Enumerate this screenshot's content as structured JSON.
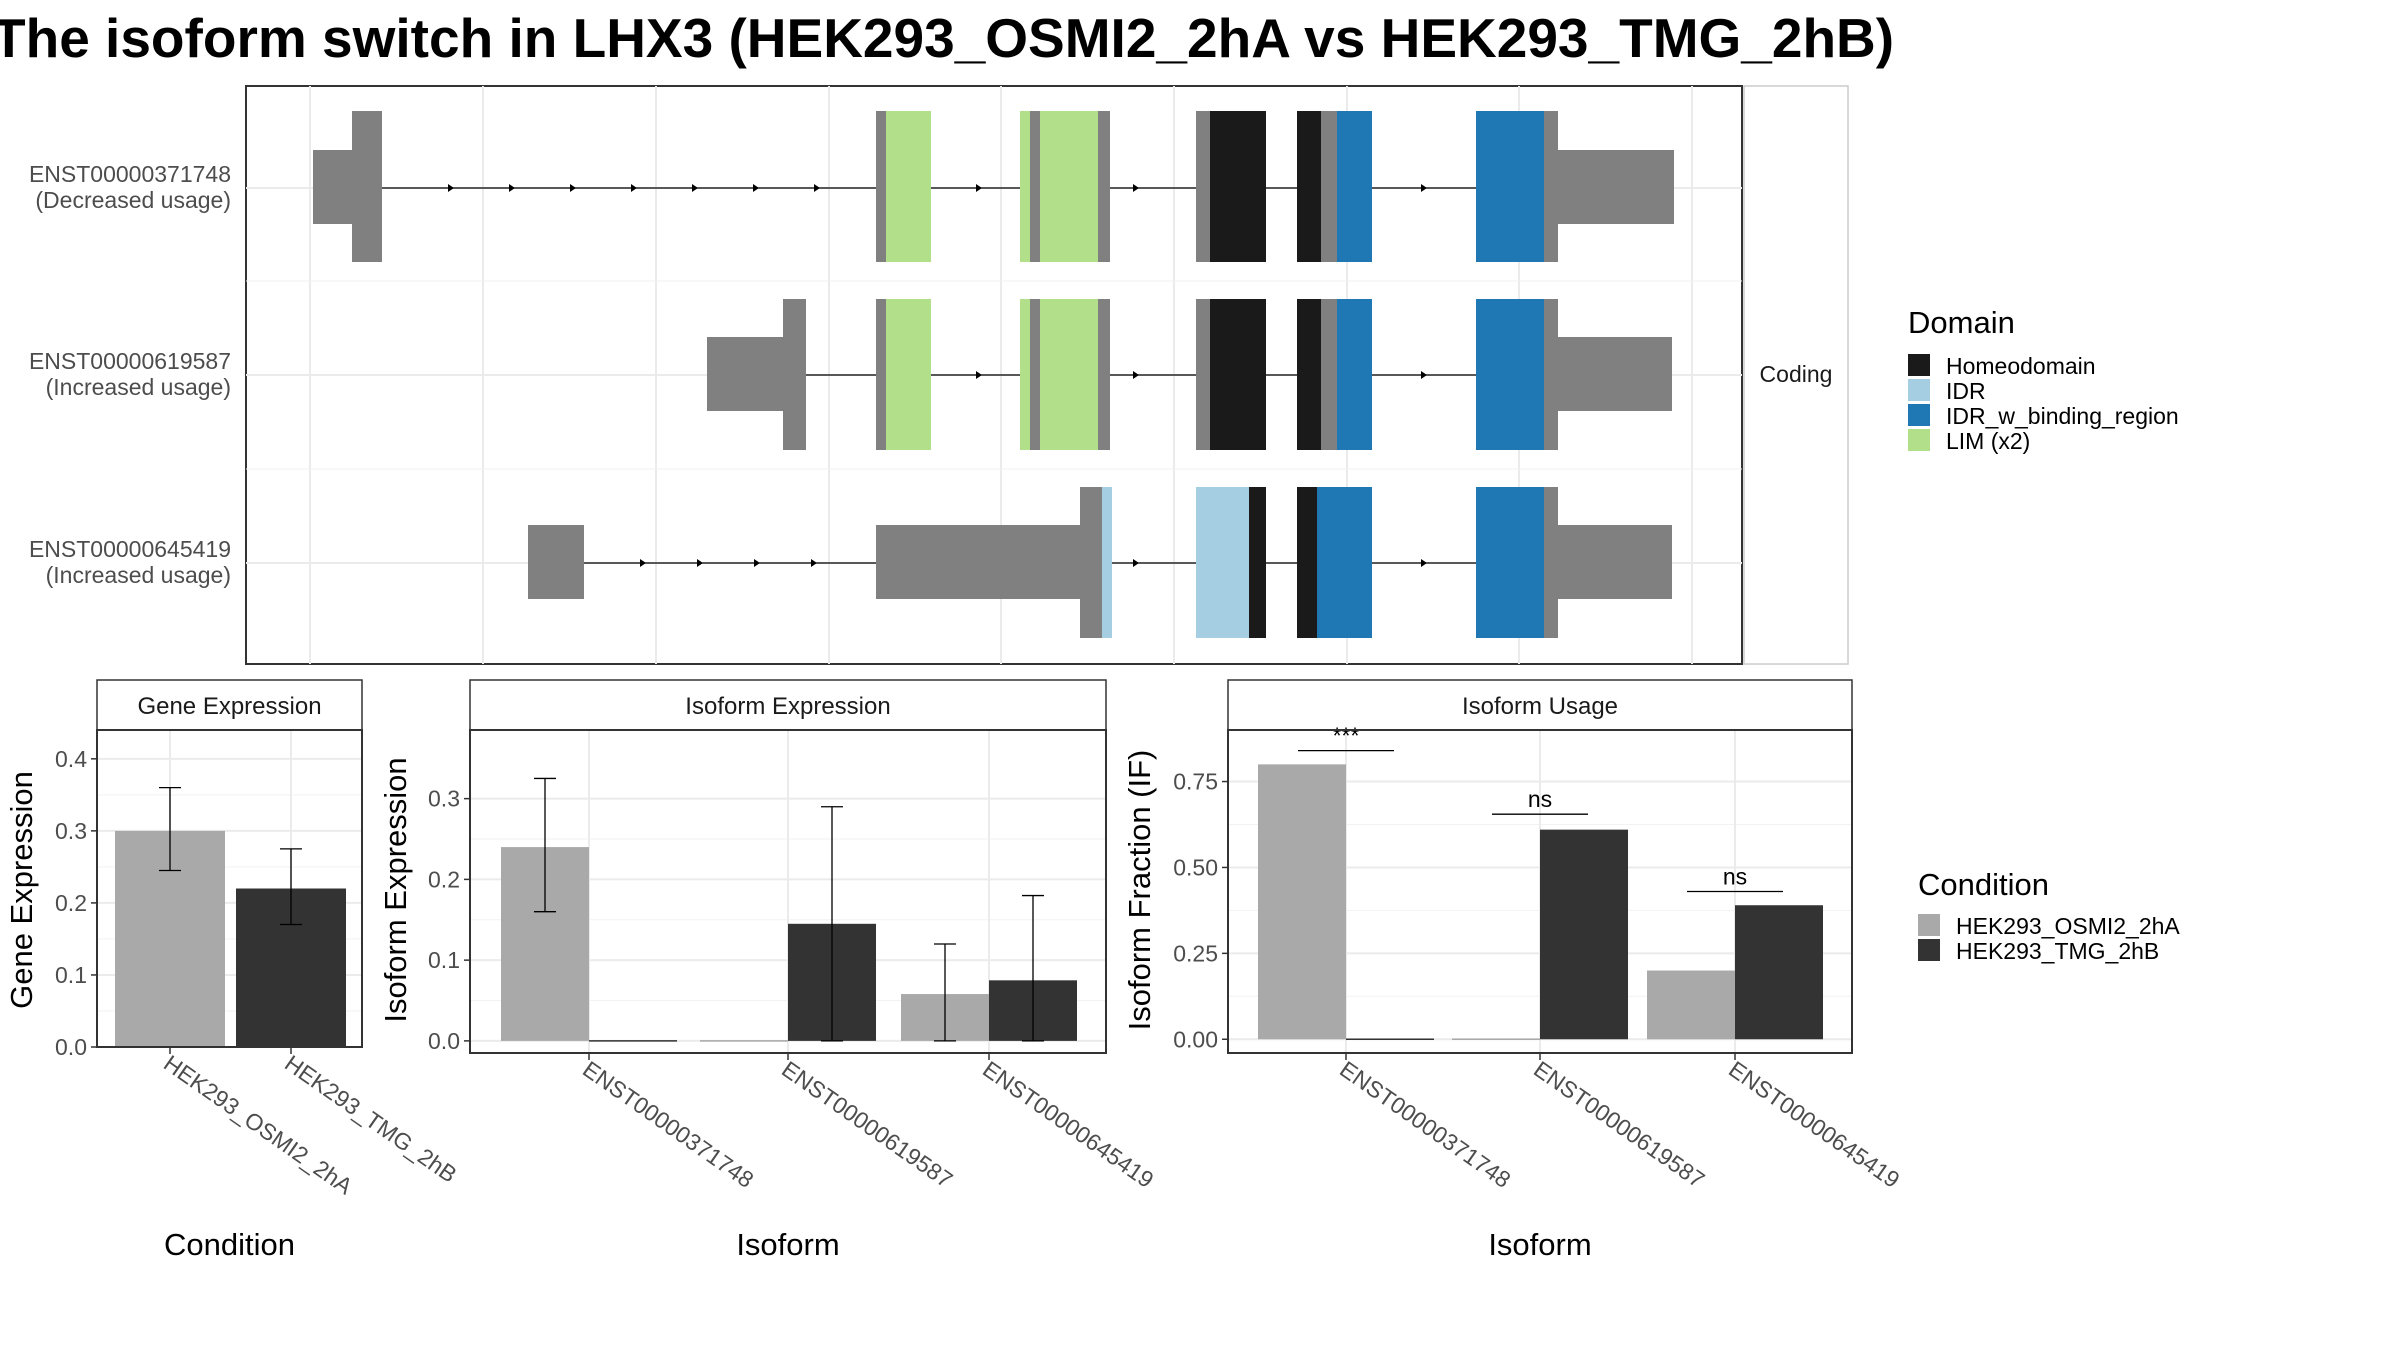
{
  "title": "The isoform switch in LHX3 (HEK293_OSMI2_2hA vs HEK293_TMG_2hB)",
  "chart_data": [
    {
      "type": "transcript_structure",
      "facet_label": "Coding",
      "legend_title": "Domain",
      "domains": [
        {
          "name": "Homeodomain",
          "color": "#1a1a1a"
        },
        {
          "name": "IDR",
          "color": "#a6cee3"
        },
        {
          "name": "IDR_w_binding_region",
          "color": "#1f78b4"
        },
        {
          "name": "LIM (x2)",
          "color": "#b2df8a"
        }
      ],
      "transcripts": [
        {
          "id": "ENST00000371748",
          "label_line2": "(Decreased usage)"
        },
        {
          "id": "ENST00000619587",
          "label_line2": "(Increased usage)"
        },
        {
          "id": "ENST00000645419",
          "label_line2": "(Increased usage)"
        }
      ]
    },
    {
      "type": "bar",
      "title": "Gene Expression",
      "xlabel": "Condition",
      "ylabel": "Gene Expression",
      "ylim": [
        0,
        0.44
      ],
      "yticks": [
        0.0,
        0.1,
        0.2,
        0.3,
        0.4
      ],
      "ytick_labels": [
        "0.0",
        "0.1",
        "0.2",
        "0.3",
        "0.4"
      ],
      "categories": [
        "HEK293_OSMI2_2hA",
        "HEK293_TMG_2hB"
      ],
      "values": [
        0.3,
        0.22
      ],
      "err_low": [
        0.245,
        0.17
      ],
      "err_high": [
        0.36,
        0.275
      ]
    },
    {
      "type": "bar",
      "title": "Isoform Expression",
      "xlabel": "Isoform",
      "ylabel": "Isoform Expression",
      "ylim": [
        -0.015,
        0.385
      ],
      "yticks": [
        0.0,
        0.1,
        0.2,
        0.3
      ],
      "ytick_labels": [
        "0.0",
        "0.1",
        "0.2",
        "0.3"
      ],
      "categories": [
        "ENST00000371748",
        "ENST00000619587",
        "ENST00000645419"
      ],
      "series": [
        {
          "name": "HEK293_OSMI2_2hA",
          "values": [
            0.24,
            0.0,
            0.058
          ],
          "err_low": [
            0.16,
            0.0,
            0.0
          ],
          "err_high": [
            0.325,
            0.0,
            0.12
          ]
        },
        {
          "name": "HEK293_TMG_2hB",
          "values": [
            0.0,
            0.145,
            0.075
          ],
          "err_low": [
            0.0,
            0.0,
            0.0
          ],
          "err_high": [
            0.0,
            0.29,
            0.18
          ]
        }
      ]
    },
    {
      "type": "bar",
      "title": "Isoform Usage",
      "xlabel": "Isoform",
      "ylabel": "Isoform Fraction (IF)",
      "ylim": [
        -0.04,
        0.9
      ],
      "yticks": [
        0.0,
        0.25,
        0.5,
        0.75
      ],
      "ytick_labels": [
        "0.00",
        "0.25",
        "0.50",
        "0.75"
      ],
      "categories": [
        "ENST00000371748",
        "ENST00000619587",
        "ENST00000645419"
      ],
      "series": [
        {
          "name": "HEK293_OSMI2_2hA",
          "values": [
            0.8,
            0.0,
            0.2
          ]
        },
        {
          "name": "HEK293_TMG_2hB",
          "values": [
            0.0,
            0.61,
            0.39
          ]
        }
      ],
      "significance": [
        {
          "label": "***",
          "y": 0.84
        },
        {
          "label": "ns",
          "y": 0.655
        },
        {
          "label": "ns",
          "y": 0.43
        }
      ]
    }
  ],
  "condition_legend": {
    "title": "Condition",
    "items": [
      {
        "name": "HEK293_OSMI2_2hA",
        "color": "#a9a9a9"
      },
      {
        "name": "HEK293_TMG_2hB",
        "color": "#333333"
      }
    ]
  }
}
